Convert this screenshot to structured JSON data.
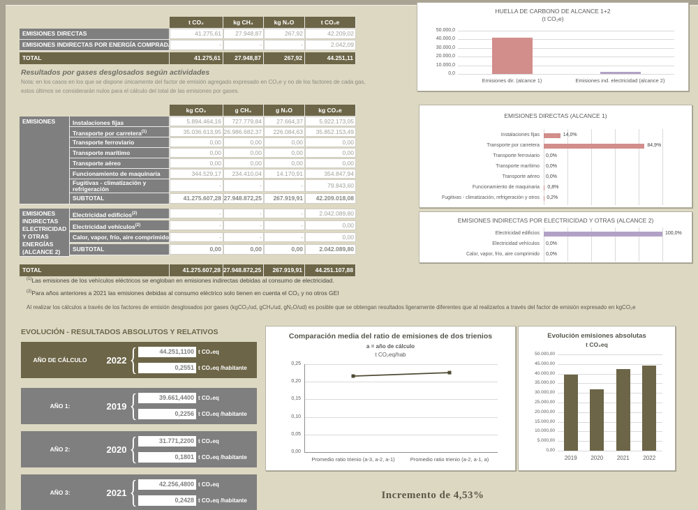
{
  "colors": {
    "olive": "#6c6547",
    "gray": "#7f7f7f",
    "beige": "#ddd8c2",
    "pink": "#d28e8b",
    "lavender": "#b2a1c6"
  },
  "summary_table": {
    "headers": [
      "t CO₂",
      "kg CH₄",
      "kg N₂O",
      "t CO₂e"
    ],
    "rows": [
      {
        "label": "EMISIONES DIRECTAS",
        "values": [
          "41.275,61",
          "27.948,87",
          "267,92",
          "42.209,02"
        ]
      },
      {
        "label": "EMISIONES INDIRECTAS POR ENERGÍA COMPRADA",
        "values": [
          "-",
          "-",
          "-",
          "2.042,09"
        ]
      }
    ],
    "total": {
      "label": "TOTAL",
      "values": [
        "41.275,61",
        "27.948,87",
        "267,92",
        "44.251,11"
      ]
    }
  },
  "gases_section": {
    "title": "Resultados por gases desglosados según actividades",
    "note_line1": "Nota: en los casos en los que se dispone únicamente del factor de emisión agregado expresado en CO₂e y no de los factores de cada gas,",
    "note_line2": "estos últimos se considerarán nulos para el cálculo del total de las emisiones por gases.",
    "headers": [
      "kg CO₂",
      "g CH₄",
      "g N₂O",
      "kg CO₂e"
    ],
    "group1": {
      "label": "EMISIONES",
      "rows": [
        {
          "label": "Instalaciones fijas",
          "sup": "",
          "values": [
            "5.894.464,16",
            "727.779,84",
            "27.664,37",
            "5.922.173,05"
          ]
        },
        {
          "label": "Transporte por carretera",
          "sup": "(1)",
          "values": [
            "35.036.613,95",
            "26.986.682,37",
            "226.084,63",
            "35.852.153,49"
          ]
        },
        {
          "label": "Transporte ferroviario",
          "sup": "",
          "values": [
            "0,00",
            "0,00",
            "0,00",
            "0,00"
          ]
        },
        {
          "label": "Transporte marítimo",
          "sup": "",
          "values": [
            "0,00",
            "0,00",
            "0,00",
            "0,00"
          ]
        },
        {
          "label": "Transporte aéreo",
          "sup": "",
          "values": [
            "0,00",
            "0,00",
            "0,00",
            "0,00"
          ]
        },
        {
          "label": "Funcionamiento de maquinaria",
          "sup": "",
          "values": [
            "344.529,17",
            "234.410,04",
            "14.170,91",
            "354.847,94"
          ]
        },
        {
          "label": "Fugitivas - climatización y refrigeración",
          "sup": "",
          "values": [
            "-",
            "-",
            "-",
            "79.843,60"
          ]
        }
      ],
      "subtotal": {
        "label": "SUBTOTAL",
        "values": [
          "41.275.607,28",
          "27.948.872,25",
          "267.919,91",
          "42.209.018,08"
        ]
      }
    },
    "group2": {
      "label": "EMISIONES INDIRECTAS ELECTRICIDAD Y OTRAS ENERGÍAS (ALCANCE 2)",
      "rows": [
        {
          "label": "Electricidad edificios",
          "sup": "(2)",
          "values": [
            "-",
            "-",
            "-",
            "2.042.089,80"
          ]
        },
        {
          "label": "Electricidad vehículos",
          "sup": "(2)",
          "values": [
            "-",
            "-",
            "-",
            "0,00"
          ]
        },
        {
          "label": "Calor, vapor, frío, aire comprimido",
          "sup": "",
          "values": [
            "-",
            "-",
            "-",
            "0,00"
          ]
        }
      ],
      "subtotal": {
        "label": "SUBTOTAL",
        "values": [
          "0,00",
          "0,00",
          "0,00",
          "2.042.089,80"
        ]
      }
    },
    "total": {
      "label": "TOTAL",
      "values": [
        "41.275.607,28",
        "27.948.872,25",
        "267.919,91",
        "44.251.107,88"
      ]
    }
  },
  "footnotes": [
    {
      "sup": "(1)",
      "text": "Las emisiones de los vehículos eléctricos se engloban en emisiones indirectas debidas al consumo de electricidad."
    },
    {
      "sup": "(2)",
      "text": "Para años anteriores a 2021 las emisiones debidas al consumo eléctrico solo tienen en cuenta el CO₂ y no otros GEI"
    },
    {
      "sup": "",
      "text": "Al realizar los cálculos a través de los factores de emisión desglosados por gases (kgCO₂/ud, gCH₄/ud, gN₂O/ud) es posible que se obtengan resultados ligeramente diferentes que al realizarlos a través del factor de emisión expresado en kgCO₂e"
    }
  ],
  "chart_data": [
    {
      "id": "scope12",
      "type": "bar",
      "title": "HUELLA DE CARBONO DE ALCANCE 1+2",
      "subtitle": "(t CO₂e)",
      "categories": [
        "Emisiones dir. (alcance 1)",
        "Emisiones ind. electricidad (alcance 2)"
      ],
      "values": [
        42209.02,
        2042.09
      ],
      "bar_colors": [
        "#d28e8b",
        "#b2a1c6"
      ],
      "ylim": [
        0,
        50000
      ],
      "yticks": [
        "50.000,0",
        "40.000,0",
        "30.000,0",
        "20.000,0",
        "10.000,0",
        "0,0"
      ],
      "grid": true,
      "legend": "none"
    },
    {
      "id": "alcance1",
      "type": "hbar",
      "title": "EMISIONES DIRECTAS (ALCANCE 1)",
      "categories": [
        "Instalaciones fijas",
        "Transporte por carretera",
        "Transporte ferroviario",
        "Transporte marítimo",
        "Transporte aéreo",
        "Funcionamiento de maquinaria",
        "Fugitivas - climatización, refrigeración y otros"
      ],
      "values": [
        14.0,
        84.9,
        0.0,
        0.0,
        0.0,
        0.8,
        0.2
      ],
      "labels": [
        "14,0%",
        "84,9%",
        "0,0%",
        "0,0%",
        "0,0%",
        "0,8%",
        "0,2%"
      ],
      "bar_color": "#d28e8b",
      "xlim": [
        0,
        100
      ],
      "grid": true,
      "legend": "none"
    },
    {
      "id": "alcance2",
      "type": "hbar",
      "title": "EMISIONES INDIRECTAS POR ELECTRICIDAD Y OTRAS (ALCANCE 2)",
      "categories": [
        "Electricidad edificios",
        "Electricidad vehículos",
        "Calor, vapor, frío, aire comprimido"
      ],
      "values": [
        100.0,
        0.0,
        0.0
      ],
      "labels": [
        "100,0%",
        "0,0%",
        "0,0%"
      ],
      "bar_color": "#b2a1c6",
      "xlim": [
        0,
        100
      ],
      "grid": true,
      "legend": "none"
    },
    {
      "id": "trienios",
      "type": "line",
      "title": "Comparación media del ratio de emisiones de dos trienios",
      "subtitle1": "a = año de cálculo",
      "subtitle2": "t CO₂eq/hab",
      "categories": [
        "Promedio ratio trienio (a-3, a-2, a-1)",
        "Promedio ratio trienio (a-2, a-1, a)"
      ],
      "values": [
        0.2162,
        0.226
      ],
      "ylim": [
        0,
        0.25
      ],
      "yticks": [
        "0,25",
        "0,20",
        "0,15",
        "0,10",
        "0,05",
        "0,00"
      ],
      "line_color": "#4e4b33",
      "grid": true,
      "legend": "none"
    },
    {
      "id": "evolucion",
      "type": "bar",
      "title": "Evolución emisiones absolutas",
      "subtitle": "t CO₂eq",
      "categories": [
        "2019",
        "2020",
        "2021",
        "2022"
      ],
      "values": [
        39661.44,
        31771.22,
        42256.48,
        44251.11
      ],
      "bar_color": "#6c6547",
      "ylim": [
        0,
        50000
      ],
      "yticks": [
        "50.000,00",
        "45.000,00",
        "40.000,00",
        "35.000,00",
        "30.000,00",
        "25.000,00",
        "20.000,00",
        "15.000,00",
        "10.000,00",
        "5.000,00",
        "0,00"
      ],
      "grid": true,
      "legend": "none"
    }
  ],
  "evolution": {
    "header": "EVOLUCIÓN - RESULTADOS ABSOLUTOS Y RELATIVOS",
    "unit_abs": "t CO₂eq",
    "unit_rel": "t CO₂eq /habitante",
    "blocks": [
      {
        "label": "AÑO DE CÁLCULO",
        "year": "2022",
        "abs": "44.251,1100",
        "rel": "0,2551"
      },
      {
        "label": "AÑO 1:",
        "year": "2019",
        "abs": "39.661,4400",
        "rel": "0,2256"
      },
      {
        "label": "AÑO 2:",
        "year": "2020",
        "abs": "31.771,2200",
        "rel": "0,1801"
      },
      {
        "label": "AÑO 3:",
        "year": "2021",
        "abs": "42.256,4800",
        "rel": "0,2428"
      }
    ]
  },
  "increment": "Incremento de  4,53%"
}
